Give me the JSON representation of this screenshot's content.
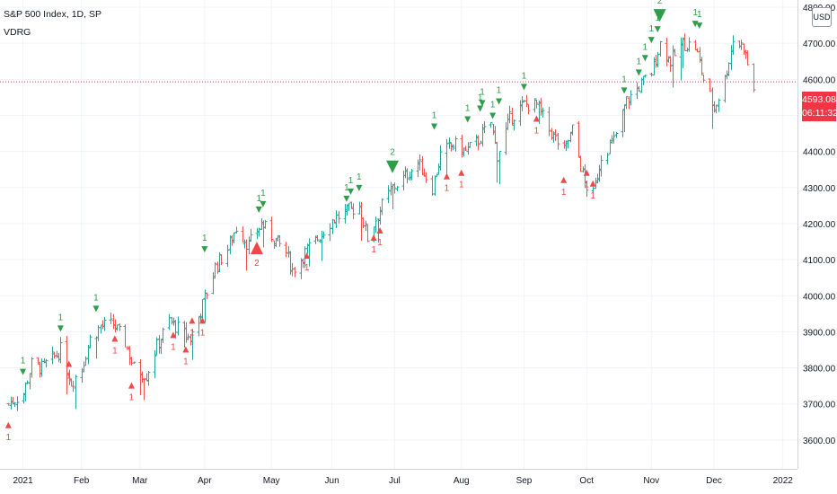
{
  "header": {
    "title": "S&P 500 Index, 1D, SP",
    "indicator": "VDRG",
    "currency": "USD"
  },
  "price_tag": {
    "price": "4593.08",
    "countdown": "06:11:32"
  },
  "colors": {
    "up": "#26a69a",
    "down": "#ef5350",
    "signal_down": "#2e9e4a",
    "signal_up": "#f04848",
    "price_line": "#f23645",
    "grid": "#f0f3fa",
    "axis_text": "#131722"
  },
  "chart_data": {
    "type": "ohlc",
    "title": "S&P 500 Index, 1D, SP",
    "xlabel": "",
    "ylabel": "",
    "ylim": [
      3520,
      4820
    ],
    "y_ticks": [
      "4800.00",
      "4700.00",
      "4600.00",
      "4500.00",
      "4400.00",
      "4300.00",
      "4200.00",
      "4100.00",
      "4000.00",
      "3900.00",
      "3800.00",
      "3700.00",
      "3600.00"
    ],
    "x_ticks": [
      {
        "label": "2021",
        "date": "2021-01-04"
      },
      {
        "label": "Feb",
        "date": "2021-02-01"
      },
      {
        "label": "Mar",
        "date": "2021-03-01"
      },
      {
        "label": "Apr",
        "date": "2021-04-01"
      },
      {
        "label": "May",
        "date": "2021-05-03"
      },
      {
        "label": "Jun",
        "date": "2021-06-01"
      },
      {
        "label": "Jul",
        "date": "2021-07-01"
      },
      {
        "label": "Aug",
        "date": "2021-08-02"
      },
      {
        "label": "Sep",
        "date": "2021-09-01"
      },
      {
        "label": "Oct",
        "date": "2021-10-01"
      },
      {
        "label": "Nov",
        "date": "2021-11-01"
      },
      {
        "label": "Dec",
        "date": "2021-12-01"
      },
      {
        "label": "2022",
        "date": "2022-01-03"
      }
    ],
    "current_price": 4593.08,
    "grid": true,
    "series": [
      {
        "name": "S&P 500 Index",
        "dates": [
          "2020-12-28",
          "2021-01-04",
          "2021-01-08",
          "2021-01-13",
          "2021-01-19",
          "2021-01-22",
          "2021-01-27",
          "2021-02-01",
          "2021-02-05",
          "2021-02-10",
          "2021-02-16",
          "2021-02-22",
          "2021-02-26",
          "2021-03-04",
          "2021-03-09",
          "2021-03-15",
          "2021-03-19",
          "2021-03-25",
          "2021-03-31",
          "2021-04-06",
          "2021-04-12",
          "2021-04-16",
          "2021-04-22",
          "2021-04-28",
          "2021-05-04",
          "2021-05-10",
          "2021-05-13",
          "2021-05-19",
          "2021-05-25",
          "2021-06-01",
          "2021-06-07",
          "2021-06-14",
          "2021-06-18",
          "2021-06-24",
          "2021-06-30",
          "2021-07-06",
          "2021-07-12",
          "2021-07-19",
          "2021-07-23",
          "2021-07-29",
          "2021-08-04",
          "2021-08-10",
          "2021-08-16",
          "2021-08-19",
          "2021-08-25",
          "2021-09-01",
          "2021-09-07",
          "2021-09-13",
          "2021-09-20",
          "2021-09-24",
          "2021-09-30",
          "2021-10-04",
          "2021-10-08",
          "2021-10-14",
          "2021-10-20",
          "2021-10-26",
          "2021-11-01",
          "2021-11-05",
          "2021-11-10",
          "2021-11-16",
          "2021-11-22",
          "2021-11-26",
          "2021-12-01",
          "2021-12-06",
          "2021-12-10",
          "2021-12-15",
          "2021-12-20"
        ],
        "close": [
          3700,
          3730,
          3810,
          3800,
          3830,
          3850,
          3760,
          3800,
          3880,
          3915,
          3920,
          3870,
          3800,
          3780,
          3860,
          3930,
          3910,
          3880,
          3975,
          4080,
          4130,
          4190,
          4140,
          4200,
          4160,
          4120,
          4070,
          4120,
          4160,
          4210,
          4230,
          4250,
          4160,
          4240,
          4300,
          4330,
          4370,
          4300,
          4390,
          4420,
          4400,
          4430,
          4480,
          4390,
          4490,
          4530,
          4530,
          4460,
          4400,
          4460,
          4310,
          4280,
          4390,
          4430,
          4540,
          4580,
          4620,
          4700,
          4650,
          4700,
          4690,
          4600,
          4520,
          4600,
          4710,
          4690,
          4570
        ]
      }
    ],
    "signals": [
      {
        "date": "2020-12-28",
        "dir": "up",
        "label": "1",
        "price": 3650
      },
      {
        "date": "2021-01-04",
        "dir": "down",
        "label": "1",
        "price": 3780
      },
      {
        "date": "2021-01-22",
        "dir": "down",
        "label": "1",
        "price": 3900
      },
      {
        "date": "2021-01-26",
        "dir": "up",
        "label": "1",
        "price": 3820
      },
      {
        "date": "2021-02-08",
        "dir": "down",
        "label": "1",
        "price": 3955
      },
      {
        "date": "2021-02-17",
        "dir": "up",
        "label": "1",
        "price": 3890
      },
      {
        "date": "2021-02-25",
        "dir": "up",
        "label": "1",
        "price": 3760
      },
      {
        "date": "2021-03-17",
        "dir": "up",
        "label": "1",
        "price": 3900
      },
      {
        "date": "2021-03-23",
        "dir": "up",
        "label": "1",
        "price": 3860
      },
      {
        "date": "2021-03-26",
        "dir": "up",
        "label": "1",
        "price": 3940
      },
      {
        "date": "2021-03-31",
        "dir": "up",
        "label": "1",
        "price": 3940
      },
      {
        "date": "2021-04-01",
        "dir": "down",
        "label": "1",
        "price": 4120
      },
      {
        "date": "2021-04-26",
        "dir": "up",
        "label": "2",
        "price": 4150
      },
      {
        "date": "2021-04-27",
        "dir": "down",
        "label": "1",
        "price": 4230
      },
      {
        "date": "2021-04-29",
        "dir": "down",
        "label": "1",
        "price": 4245
      },
      {
        "date": "2021-05-20",
        "dir": "up",
        "label": "1",
        "price": 4120
      },
      {
        "date": "2021-06-08",
        "dir": "down",
        "label": "1",
        "price": 4260
      },
      {
        "date": "2021-06-10",
        "dir": "down",
        "label": "1",
        "price": 4280
      },
      {
        "date": "2021-06-14",
        "dir": "down",
        "label": "1",
        "price": 4290
      },
      {
        "date": "2021-06-21",
        "dir": "up",
        "label": "1",
        "price": 4170
      },
      {
        "date": "2021-06-24",
        "dir": "up",
        "label": "1",
        "price": 4190
      },
      {
        "date": "2021-06-30",
        "dir": "down",
        "label": "2",
        "price": 4340
      },
      {
        "date": "2021-07-20",
        "dir": "down",
        "label": "1",
        "price": 4460
      },
      {
        "date": "2021-07-26",
        "dir": "up",
        "label": "1",
        "price": 4340
      },
      {
        "date": "2021-08-02",
        "dir": "up",
        "label": "1",
        "price": 4350
      },
      {
        "date": "2021-08-05",
        "dir": "down",
        "label": "1",
        "price": 4480
      },
      {
        "date": "2021-08-11",
        "dir": "down",
        "label": "1",
        "price": 4510
      },
      {
        "date": "2021-08-12",
        "dir": "down",
        "label": "1",
        "price": 4525
      },
      {
        "date": "2021-08-17",
        "dir": "down",
        "label": "1",
        "price": 4490
      },
      {
        "date": "2021-08-20",
        "dir": "down",
        "label": "1",
        "price": 4530
      },
      {
        "date": "2021-09-01",
        "dir": "down",
        "label": "1",
        "price": 4570
      },
      {
        "date": "2021-09-07",
        "dir": "up",
        "label": "1",
        "price": 4500
      },
      {
        "date": "2021-09-20",
        "dir": "up",
        "label": "1",
        "price": 4330
      },
      {
        "date": "2021-10-01",
        "dir": "up",
        "label": "1",
        "price": 4350
      },
      {
        "date": "2021-10-04",
        "dir": "up",
        "label": "1",
        "price": 4320
      },
      {
        "date": "2021-10-19",
        "dir": "down",
        "label": "1",
        "price": 4560
      },
      {
        "date": "2021-10-26",
        "dir": "down",
        "label": "1",
        "price": 4610
      },
      {
        "date": "2021-10-29",
        "dir": "down",
        "label": "1",
        "price": 4650
      },
      {
        "date": "2021-11-01",
        "dir": "down",
        "label": "1",
        "price": 4700
      },
      {
        "date": "2021-11-04",
        "dir": "down",
        "label": "1",
        "price": 4730
      },
      {
        "date": "2021-11-05",
        "dir": "down",
        "label": "2",
        "price": 4760
      },
      {
        "date": "2021-11-22",
        "dir": "down",
        "label": "1",
        "price": 4745
      },
      {
        "date": "2021-11-24",
        "dir": "down",
        "label": "1",
        "price": 4740
      }
    ]
  }
}
